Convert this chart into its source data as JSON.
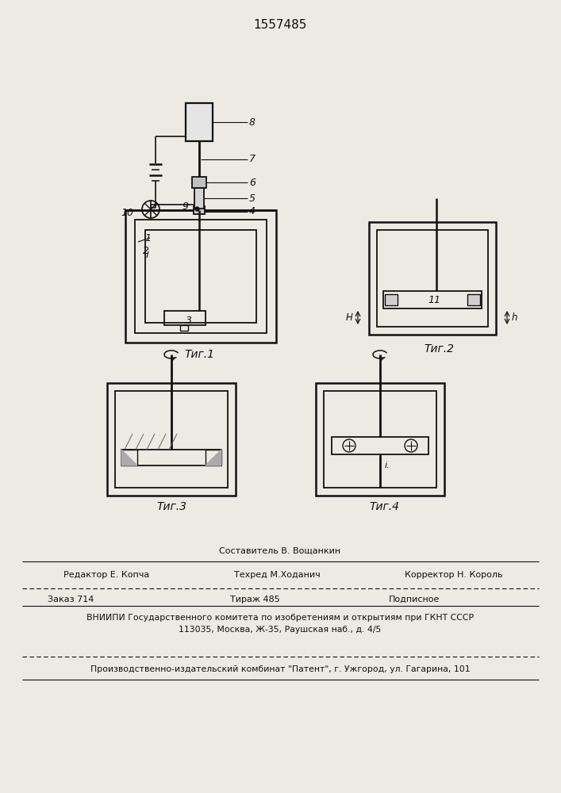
{
  "patent_number": "1557485",
  "bg": "#ede9e3",
  "lc": "#111111",
  "fig1_label": "Τиг.1",
  "fig2_label": "Τиг.2",
  "fig3_label": "Τиг.3",
  "fig4_label": "Τиг.4",
  "composer": "Составитель В. Вощанкин",
  "editor": "Редактор Е. Копча",
  "techred": "Техред М.Ходанич",
  "corrector": "Корректор Н. Король",
  "order": "Заказ 714",
  "tirazh": "Тираж 485",
  "podpisnoe": "Подписное",
  "vniipи1": "ВНИИПИ Государственного комитета по изобретениям и открытиям при ГКНТ СССР",
  "vniipи2": "113035, Москва, Ж-35, Раушская наб., д. 4/5",
  "producer": "Производственно-издательский комбинат \"Патент\", г. Ужгород, ул. Гагарина, 101"
}
